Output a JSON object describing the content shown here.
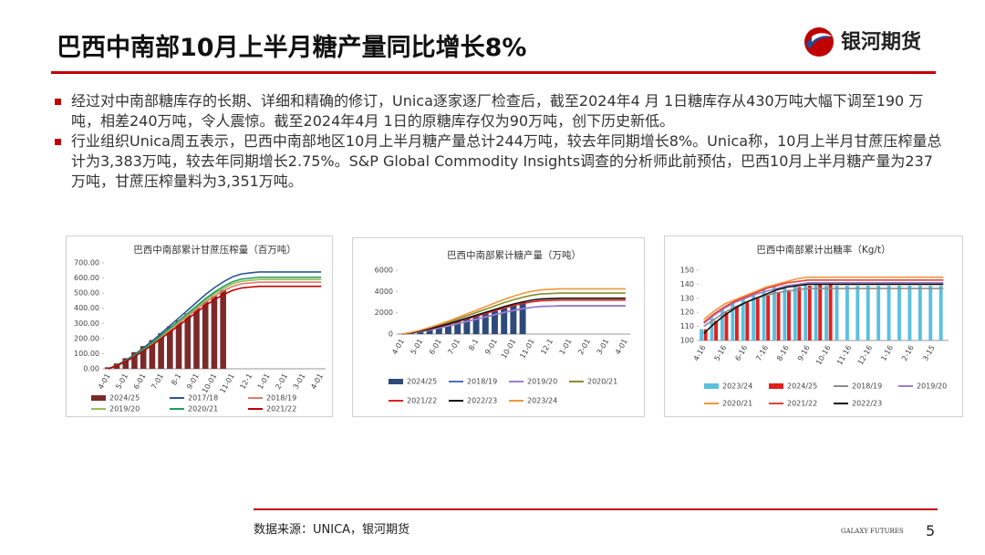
{
  "header": {
    "title": "巴西中南部10月上半月糖产量同比增长8%",
    "logo_text": "银河期货"
  },
  "bullets": [
    "经过对中南部糖库存的长期、详细和精确的修订，Unica逐家逐厂检查后，截至2024年4 月 1日糖库存从430万吨大幅下调至190 万吨，相差240万吨，令人震惊。截至2024年4月 1日的原糖库存仅为90万吨，创下历史新低。",
    "行业组织Unica周五表示，巴西中南部地区10月上半月糖产量总计244万吨，较去年同期增长8%。Unica称，10月上半月甘蔗压榨量总计为3,383万吨，较去年同期增长2.75%。S&P Global Commodity Insights调查的分析师此前预估，巴西10月上半月糖产量为237万吨，甘蔗压榨量料为3,351万吨。"
  ],
  "chart_data": [
    {
      "type": "combo",
      "title": "巴西中南部累计甘蔗压榨量（百万吨）",
      "categories": [
        "4-01",
        null,
        "5-01",
        null,
        "6-01",
        null,
        "7-01",
        null,
        "8-1",
        null,
        "9-01",
        null,
        "10-01",
        null,
        "11-01",
        null,
        "12-1",
        null,
        "1-01",
        null,
        "2-01",
        null,
        "3-01",
        null,
        "4-01"
      ],
      "ylim": [
        0,
        700
      ],
      "yticks": [
        {
          "value": 0,
          "label": "0.00"
        },
        {
          "value": 100,
          "label": "100.00"
        },
        {
          "value": 200,
          "label": "200.00"
        },
        {
          "value": 300,
          "label": "300.00"
        },
        {
          "value": 400,
          "label": "400.00"
        },
        {
          "value": 500,
          "label": "500.00"
        },
        {
          "value": 600,
          "label": "600.00"
        },
        {
          "value": 700,
          "label": "700.00"
        }
      ],
      "grid": false,
      "series": [
        {
          "name": "2024/25",
          "type": "bar",
          "color": "#7b2a2a",
          "values": [
            10,
            35,
            70,
            110,
            150,
            190,
            235,
            280,
            320,
            365,
            405,
            445,
            480,
            520,
            null,
            null,
            null,
            null,
            null,
            null,
            null,
            null,
            null,
            null,
            null
          ]
        },
        {
          "name": "2017/18",
          "type": "line",
          "color": "#2f5597",
          "values": [
            0,
            26,
            58,
            96,
            141,
            186,
            237,
            288,
            339,
            390,
            442,
            493,
            538,
            576,
            608,
            627,
            634,
            640,
            640,
            640,
            640,
            640,
            640,
            640,
            640
          ]
        },
        {
          "name": "2018/19",
          "type": "line",
          "color": "#e07b6a",
          "values": [
            0,
            23,
            52,
            86,
            126,
            166,
            212,
            258,
            304,
            350,
            395,
            441,
            481,
            516,
            544,
            562,
            567,
            573,
            573,
            573,
            573,
            573,
            573,
            573,
            573
          ]
        },
        {
          "name": "2019/20",
          "type": "line",
          "color": "#9bbb59",
          "values": [
            0,
            24,
            53,
            89,
            130,
            171,
            218,
            266,
            313,
            360,
            407,
            454,
            496,
            531,
            561,
            578,
            584,
            590,
            590,
            590,
            590,
            590,
            590,
            590,
            590
          ]
        },
        {
          "name": "2020/21",
          "type": "line",
          "color": "#1f9e5a",
          "values": [
            0,
            24,
            54,
            91,
            133,
            175,
            224,
            272,
            321,
            369,
            417,
            466,
            508,
            545,
            575,
            593,
            599,
            605,
            605,
            605,
            605,
            605,
            605,
            605,
            605
          ]
        },
        {
          "name": "2021/22",
          "type": "line",
          "color": "#c00000",
          "values": [
            0,
            22,
            49,
            82,
            120,
            158,
            202,
            245,
            289,
            332,
            376,
            420,
            458,
            491,
            518,
            534,
            540,
            545,
            545,
            545,
            545,
            545,
            545,
            545,
            545
          ]
        }
      ]
    },
    {
      "type": "combo",
      "title": "巴西中南部累计糖产量（万吨）",
      "categories": [
        "4-01",
        null,
        "5-01",
        null,
        "6-01",
        null,
        "7-01",
        null,
        "8-1",
        null,
        "9-01",
        null,
        "10-01",
        null,
        "11-01",
        null,
        "12-1",
        null,
        "1-01",
        null,
        "2-01",
        null,
        "3-01",
        null,
        "4-01"
      ],
      "ylim": [
        0,
        6000
      ],
      "yticks": [
        0,
        2000,
        4000,
        6000
      ],
      "grid": false,
      "series": [
        {
          "name": "2024/25",
          "type": "bar",
          "color": "#2e4a7a",
          "values": [
            20,
            110,
            280,
            480,
            700,
            930,
            1180,
            1430,
            1680,
            1930,
            2180,
            2430,
            2700,
            3000,
            null,
            null,
            null,
            null,
            null,
            null,
            null,
            null,
            null,
            null,
            null
          ]
        },
        {
          "name": "2018/19",
          "type": "line",
          "color": "#4472c4",
          "values": [
            0,
            106,
            239,
            398,
            583,
            769,
            981,
            1193,
            1405,
            1617,
            1829,
            2041,
            2226,
            2385,
            2518,
            2597,
            2624,
            2650,
            2650,
            2650,
            2650,
            2650,
            2650,
            2650,
            2650
          ]
        },
        {
          "name": "2019/20",
          "type": "line",
          "color": "#9e7fd0",
          "values": [
            0,
            106,
            239,
            399,
            585,
            771,
            984,
            1197,
            1410,
            1623,
            1835,
            2048,
            2234,
            2394,
            2527,
            2607,
            2633,
            2660,
            2660,
            2660,
            2660,
            2660,
            2660,
            2660,
            2660
          ]
        },
        {
          "name": "2020/21",
          "type": "line",
          "color": "#8a8a2a",
          "values": [
            0,
            154,
            347,
            578,
            847,
            1117,
            1425,
            1733,
            2041,
            2349,
            2657,
            2965,
            3234,
            3465,
            3658,
            3773,
            3812,
            3850,
            3850,
            3850,
            3850,
            3850,
            3850,
            3850,
            3850
          ]
        },
        {
          "name": "2021/22",
          "type": "line",
          "color": "#e02020",
          "values": [
            0,
            128,
            288,
            480,
            704,
            928,
            1184,
            1440,
            1696,
            1952,
            2208,
            2464,
            2688,
            2880,
            3040,
            3136,
            3168,
            3200,
            3200,
            3200,
            3200,
            3200,
            3200,
            3200,
            3200
          ]
        },
        {
          "name": "2022/23",
          "type": "line",
          "color": "#111111",
          "values": [
            0,
            135,
            303,
            506,
            741,
            977,
            1247,
            1517,
            1786,
            2056,
            2325,
            2595,
            2831,
            3033,
            3202,
            3303,
            3336,
            3370,
            3370,
            3370,
            3370,
            3370,
            3370,
            3370,
            3370
          ]
        },
        {
          "name": "2023/24",
          "type": "line",
          "color": "#f0963c",
          "values": [
            0,
            170,
            383,
            638,
            935,
            1233,
            1573,
            1913,
            2253,
            2593,
            2933,
            3273,
            3570,
            3825,
            4038,
            4165,
            4208,
            4250,
            4250,
            4250,
            4250,
            4250,
            4250,
            4250,
            4250
          ]
        }
      ]
    },
    {
      "type": "combo",
      "title": "巴西中南部累计出糖率（Kg/t）",
      "categories": [
        "4-16",
        null,
        "5-16",
        null,
        "6-16",
        null,
        "7-16",
        null,
        "8-16",
        null,
        "9-16",
        null,
        "10-16",
        null,
        "11-16",
        null,
        "12-16",
        null,
        "1-16",
        null,
        "2-16",
        null,
        "3-15",
        null
      ],
      "ylim": [
        100,
        150
      ],
      "yticks": [
        100,
        110,
        120,
        130,
        140,
        150
      ],
      "grid": false,
      "series": [
        {
          "name": "2023/24",
          "type": "bar",
          "color": "#5bc0de",
          "values": [
            108,
            116,
            122,
            127,
            130,
            133,
            136,
            138,
            139,
            140,
            140,
            140,
            139,
            139,
            139,
            139,
            139,
            139,
            139,
            139,
            139,
            139,
            139,
            139
          ]
        },
        {
          "name": "2024/25",
          "type": "bar",
          "color": "#e02020",
          "values": [
            108,
            114,
            120,
            124,
            127,
            130,
            132,
            134,
            136,
            138,
            139,
            140,
            141,
            null,
            null,
            null,
            null,
            null,
            null,
            null,
            null,
            null,
            null,
            null
          ]
        },
        {
          "name": "2018/19",
          "type": "line",
          "color": "#8c8c8c",
          "values": [
            110,
            115,
            120,
            124,
            127,
            130,
            132,
            134,
            135,
            136,
            137,
            137,
            137,
            137,
            137,
            137,
            137,
            137,
            137,
            137,
            137,
            137,
            137,
            137
          ]
        },
        {
          "name": "2019/20",
          "type": "line",
          "color": "#9e7fd0",
          "values": [
            112,
            118,
            123,
            127,
            130,
            133,
            135,
            137,
            139,
            140,
            141,
            141,
            141,
            141,
            141,
            141,
            141,
            141,
            141,
            141,
            141,
            141,
            141,
            141
          ]
        },
        {
          "name": "2020/21",
          "type": "line",
          "color": "#f0963c",
          "values": [
            115,
            121,
            126,
            129,
            132,
            135,
            138,
            140,
            142,
            144,
            145,
            145,
            145,
            145,
            145,
            145,
            145,
            145,
            145,
            145,
            145,
            145,
            145,
            145
          ]
        },
        {
          "name": "2021/22",
          "type": "line",
          "color": "#e8413c",
          "values": [
            113,
            119,
            124,
            128,
            131,
            134,
            137,
            139,
            141,
            142,
            143,
            143,
            143,
            143,
            143,
            143,
            143,
            143,
            143,
            143,
            143,
            143,
            143,
            143
          ]
        },
        {
          "name": "2022/23",
          "type": "line",
          "color": "#111111",
          "values": [
            105,
            112,
            118,
            123,
            127,
            130,
            133,
            136,
            138,
            139,
            140,
            140,
            140,
            140,
            140,
            140,
            140,
            140,
            140,
            140,
            140,
            140,
            140,
            140
          ]
        }
      ]
    }
  ],
  "footer": {
    "source": "数据来源：UNICA，银河期货",
    "brand": "GALAXY FUTURES",
    "page": 5
  }
}
